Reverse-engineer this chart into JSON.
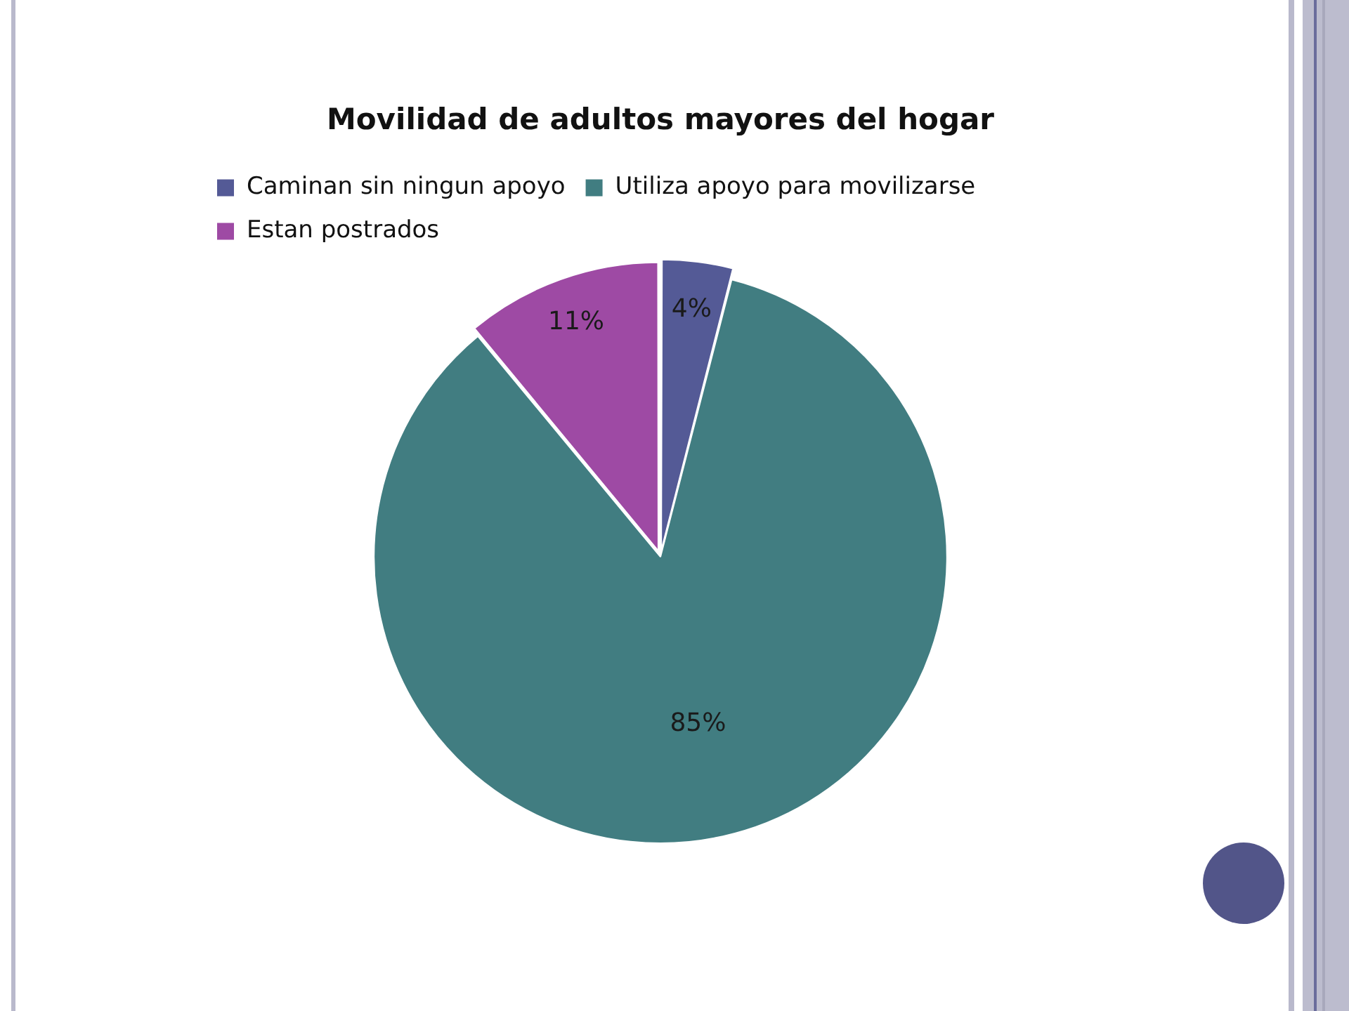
{
  "chart_data": {
    "type": "pie",
    "title": "Movilidad de adultos mayores del hogar",
    "categories": [
      "Caminan sin ningun apoyo",
      "Utiliza apoyo para movilizarse",
      "Estan postrados"
    ],
    "values": [
      4,
      85,
      11
    ],
    "colors": [
      "#545a96",
      "#417d81",
      "#9e4aa4"
    ],
    "value_labels": [
      "4%",
      "85%",
      "11%"
    ],
    "legend": "top"
  }
}
